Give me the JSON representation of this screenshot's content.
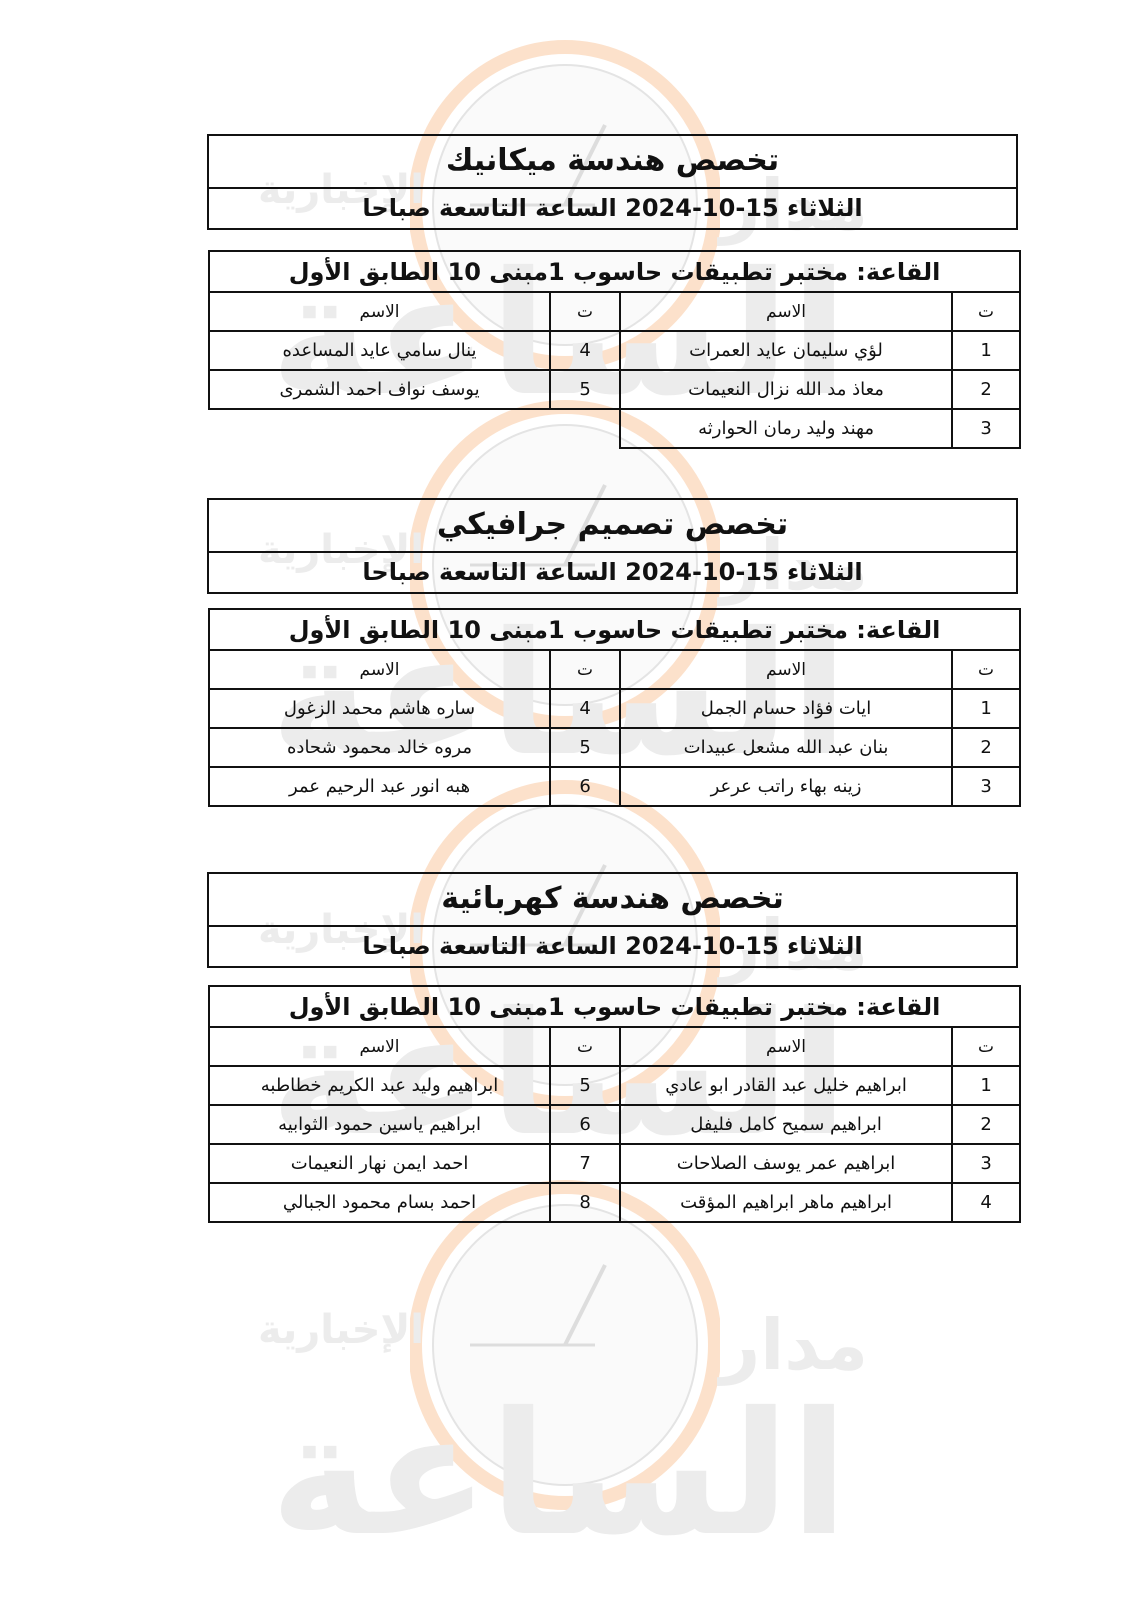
{
  "watermark": {
    "line1": "مدار",
    "line2": "الساعة",
    "line3": "الإخبارية",
    "accent": "#f6a86a"
  },
  "sections": [
    {
      "title": "تخصص هندسة ميكانيك",
      "date": "الثلاثاء 15-10-2024 الساعة التاسعة صباحا",
      "room": "القاعة: مختبر تطبيقات حاسوب 1مبنى 10 الطابق الأول",
      "col_num": "ت",
      "col_name": "الاسم",
      "rows": [
        {
          "r_num": "1",
          "r_name": "لؤي سليمان عايد العمرات",
          "l_num": "4",
          "l_name": "ينال سامي عايد المساعده"
        },
        {
          "r_num": "2",
          "r_name": "معاذ مد الله نزال النعيمات",
          "l_num": "5",
          "l_name": "يوسف نواف احمد الشمرى"
        },
        {
          "r_num": "3",
          "r_name": "مهند وليد رمان الحوارثه",
          "l_num": "",
          "l_name": ""
        }
      ]
    },
    {
      "title": "تخصص تصميم جرافيكي",
      "date": "الثلاثاء 15-10-2024 الساعة التاسعة صباحا",
      "room": "القاعة: مختبر تطبيقات حاسوب 1مبنى 10 الطابق الأول",
      "col_num": "ت",
      "col_name": "الاسم",
      "rows": [
        {
          "r_num": "1",
          "r_name": "ايات فؤاد حسام الجمل",
          "l_num": "4",
          "l_name": "ساره هاشم محمد الزغول"
        },
        {
          "r_num": "2",
          "r_name": "بنان عبد الله مشعل عبيدات",
          "l_num": "5",
          "l_name": "مروه خالد محمود شحاده"
        },
        {
          "r_num": "3",
          "r_name": "زينه بهاء راتب عرعر",
          "l_num": "6",
          "l_name": "هبه انور عبد الرحيم عمر"
        }
      ]
    },
    {
      "title": "تخصص هندسة كهربائية",
      "date": "الثلاثاء 15-10-2024 الساعة التاسعة صباحا",
      "room": "القاعة: مختبر تطبيقات حاسوب 1مبنى 10 الطابق الأول",
      "col_num": "ت",
      "col_name": "الاسم",
      "rows": [
        {
          "r_num": "1",
          "r_name": "ابراهيم خليل عبد القادر ابو عادي",
          "l_num": "5",
          "l_name": "ابراهيم وليد عبد الكريم خطاطبه"
        },
        {
          "r_num": "2",
          "r_name": "ابراهيم سميح كامل فليفل",
          "l_num": "6",
          "l_name": "ابراهيم ياسين حمود الثوابيه"
        },
        {
          "r_num": "3",
          "r_name": "ابراهيم عمر يوسف الصلاحات",
          "l_num": "7",
          "l_name": "احمد ايمن نهار النعيمات"
        },
        {
          "r_num": "4",
          "r_name": "ابراهيم ماهر ابراهيم المؤقت",
          "l_num": "8",
          "l_name": "احمد بسام محمود الجبالي"
        }
      ]
    }
  ]
}
